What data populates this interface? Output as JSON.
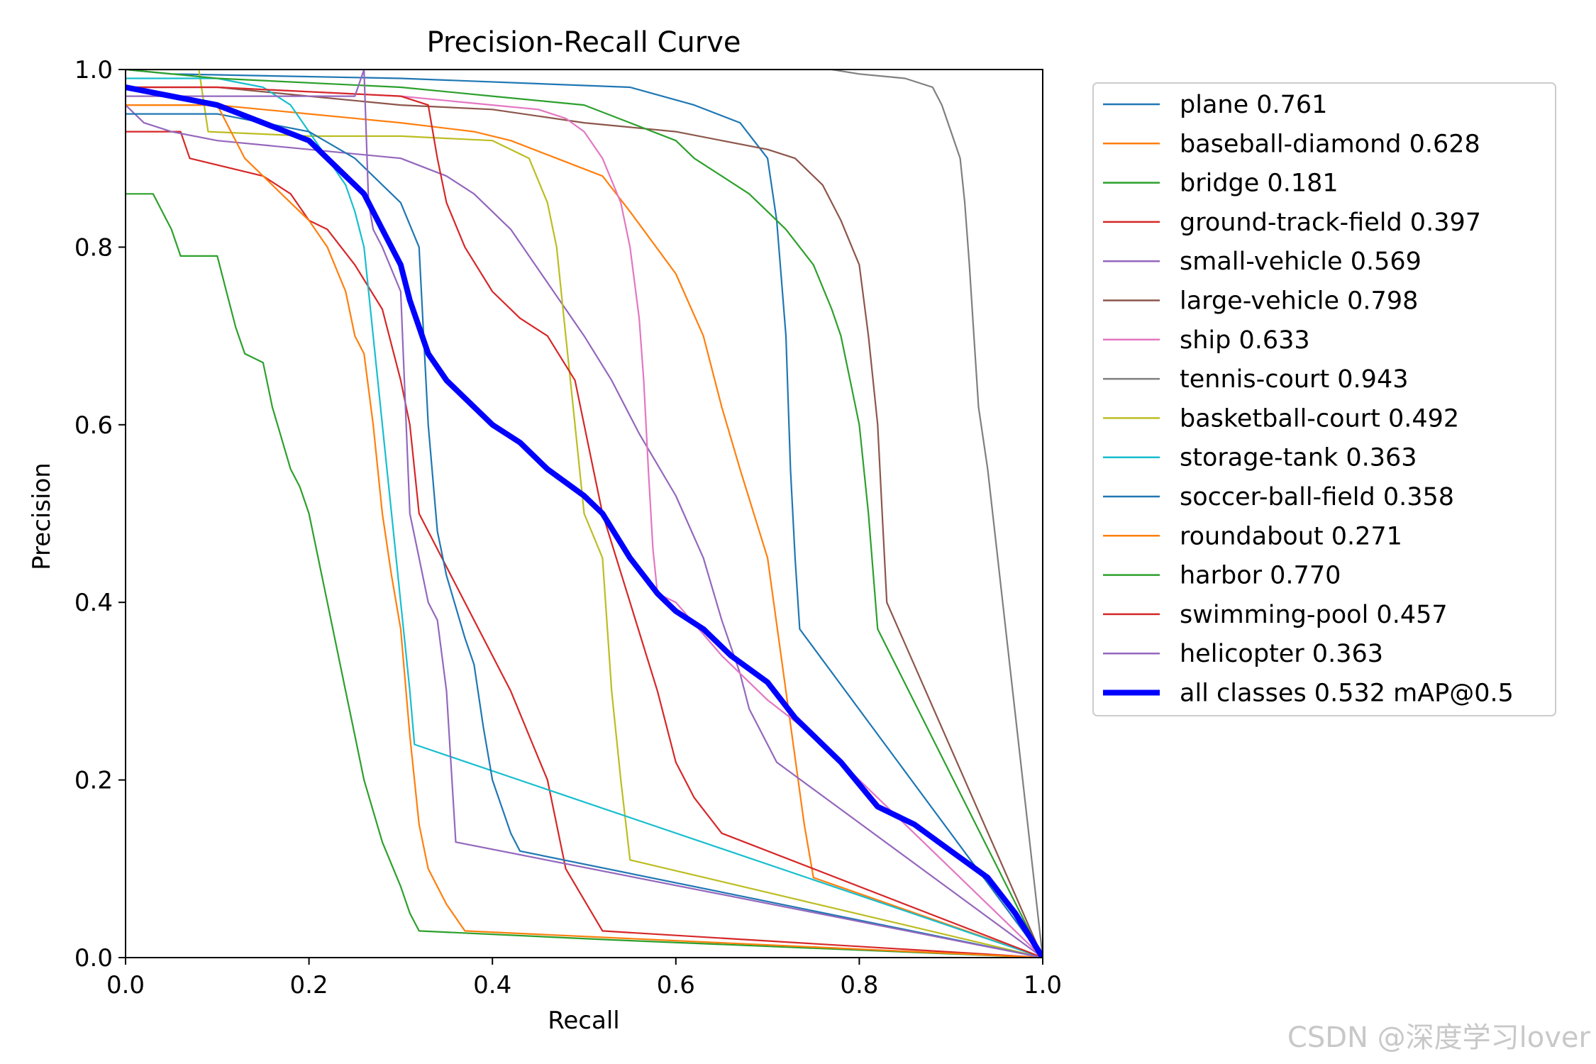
{
  "chart_data": {
    "type": "line",
    "title": "Precision-Recall Curve",
    "xlabel": "Recall",
    "ylabel": "Precision",
    "xlim": [
      0,
      1
    ],
    "ylim": [
      0,
      1
    ],
    "xticks": [
      "0.0",
      "0.2",
      "0.4",
      "0.6",
      "0.8",
      "1.0"
    ],
    "yticks": [
      "0.0",
      "0.2",
      "0.4",
      "0.6",
      "0.8",
      "1.0"
    ],
    "legend_position": "outside-right",
    "series": [
      {
        "name": "plane",
        "label": "plane 0.761",
        "color": "#1f77b4",
        "x": [
          0.0,
          0.05,
          0.3,
          0.55,
          0.62,
          0.67,
          0.7,
          0.71,
          0.72,
          0.725,
          0.73,
          0.735,
          1.0
        ],
        "y": [
          1.0,
          0.995,
          0.99,
          0.98,
          0.96,
          0.94,
          0.9,
          0.83,
          0.7,
          0.55,
          0.45,
          0.37,
          0.0
        ]
      },
      {
        "name": "baseball-diamond",
        "label": "baseball-diamond 0.628",
        "color": "#ff7f0e",
        "x": [
          0.0,
          0.05,
          0.1,
          0.2,
          0.3,
          0.38,
          0.42,
          0.47,
          0.52,
          0.55,
          0.6,
          0.63,
          0.65,
          0.67,
          0.7,
          0.72,
          0.74,
          0.75,
          1.0
        ],
        "y": [
          0.96,
          0.96,
          0.96,
          0.95,
          0.94,
          0.93,
          0.92,
          0.9,
          0.88,
          0.84,
          0.77,
          0.7,
          0.62,
          0.55,
          0.45,
          0.3,
          0.15,
          0.09,
          0.0
        ]
      },
      {
        "name": "bridge",
        "label": "bridge 0.181",
        "color": "#2ca02c",
        "x": [
          0.0,
          0.03,
          0.04,
          0.05,
          0.06,
          0.08,
          0.1,
          0.11,
          0.12,
          0.13,
          0.15,
          0.16,
          0.18,
          0.19,
          0.2,
          0.22,
          0.23,
          0.24,
          0.25,
          0.26,
          0.28,
          0.3,
          0.31,
          0.32,
          0.53,
          1.0
        ],
        "y": [
          0.86,
          0.86,
          0.84,
          0.82,
          0.79,
          0.79,
          0.79,
          0.75,
          0.71,
          0.68,
          0.67,
          0.62,
          0.55,
          0.53,
          0.5,
          0.4,
          0.35,
          0.3,
          0.25,
          0.2,
          0.13,
          0.08,
          0.05,
          0.03,
          0.02,
          0.0
        ]
      },
      {
        "name": "ground-track-field",
        "label": "ground-track-field 0.397",
        "color": "#d62728",
        "x": [
          0.0,
          0.06,
          0.07,
          0.15,
          0.18,
          0.2,
          0.22,
          0.25,
          0.28,
          0.3,
          0.31,
          0.32,
          0.35,
          0.38,
          0.42,
          0.44,
          0.46,
          0.48,
          0.52,
          1.0
        ],
        "y": [
          0.93,
          0.93,
          0.9,
          0.88,
          0.86,
          0.83,
          0.82,
          0.78,
          0.73,
          0.65,
          0.6,
          0.5,
          0.44,
          0.38,
          0.3,
          0.25,
          0.2,
          0.1,
          0.03,
          0.0
        ]
      },
      {
        "name": "small-vehicle",
        "label": "small-vehicle 0.569",
        "color": "#9467bd",
        "x": [
          0.0,
          0.02,
          0.05,
          0.1,
          0.2,
          0.3,
          0.35,
          0.38,
          0.42,
          0.46,
          0.5,
          0.53,
          0.56,
          0.6,
          0.63,
          0.65,
          0.67,
          0.68,
          0.7,
          0.71,
          1.0
        ],
        "y": [
          0.96,
          0.94,
          0.93,
          0.92,
          0.91,
          0.9,
          0.88,
          0.86,
          0.82,
          0.76,
          0.7,
          0.65,
          0.59,
          0.52,
          0.45,
          0.38,
          0.32,
          0.28,
          0.24,
          0.22,
          0.0
        ]
      },
      {
        "name": "large-vehicle",
        "label": "large-vehicle 0.798",
        "color": "#8c564b",
        "x": [
          0.0,
          0.1,
          0.2,
          0.3,
          0.4,
          0.5,
          0.6,
          0.7,
          0.73,
          0.76,
          0.78,
          0.8,
          0.81,
          0.82,
          0.825,
          0.83,
          1.0
        ],
        "y": [
          0.98,
          0.98,
          0.97,
          0.96,
          0.955,
          0.94,
          0.93,
          0.91,
          0.9,
          0.87,
          0.83,
          0.78,
          0.7,
          0.6,
          0.5,
          0.4,
          0.0
        ]
      },
      {
        "name": "ship",
        "label": "ship 0.633",
        "color": "#e377c2",
        "x": [
          0.0,
          0.1,
          0.2,
          0.3,
          0.35,
          0.4,
          0.45,
          0.48,
          0.5,
          0.52,
          0.54,
          0.55,
          0.56,
          0.565,
          0.57,
          0.575,
          0.58,
          0.6,
          0.65,
          0.7,
          0.75,
          0.8,
          0.85,
          0.9,
          1.0
        ],
        "y": [
          0.98,
          0.98,
          0.975,
          0.97,
          0.965,
          0.96,
          0.955,
          0.945,
          0.93,
          0.9,
          0.85,
          0.8,
          0.72,
          0.65,
          0.55,
          0.46,
          0.41,
          0.4,
          0.34,
          0.29,
          0.25,
          0.2,
          0.15,
          0.1,
          0.0
        ]
      },
      {
        "name": "tennis-court",
        "label": "tennis-court 0.943",
        "color": "#7f7f7f",
        "x": [
          0.0,
          0.3,
          0.6,
          0.77,
          0.8,
          0.85,
          0.88,
          0.89,
          0.9,
          0.91,
          0.915,
          0.92,
          0.925,
          0.93,
          0.94,
          1.0
        ],
        "y": [
          1.0,
          1.0,
          1.0,
          1.0,
          0.995,
          0.99,
          0.98,
          0.96,
          0.93,
          0.9,
          0.85,
          0.78,
          0.7,
          0.62,
          0.55,
          0.0
        ]
      },
      {
        "name": "basketball-court",
        "label": "basketball-court 0.492",
        "color": "#bcbd22",
        "x": [
          0.0,
          0.08,
          0.09,
          0.2,
          0.3,
          0.4,
          0.44,
          0.46,
          0.47,
          0.48,
          0.49,
          0.5,
          0.52,
          0.53,
          0.54,
          0.55,
          1.0
        ],
        "y": [
          1.0,
          1.0,
          0.93,
          0.925,
          0.925,
          0.92,
          0.9,
          0.85,
          0.8,
          0.7,
          0.6,
          0.5,
          0.45,
          0.3,
          0.2,
          0.11,
          0.0
        ]
      },
      {
        "name": "storage-tank",
        "label": "storage-tank 0.363",
        "color": "#17becf",
        "x": [
          0.0,
          0.1,
          0.15,
          0.18,
          0.2,
          0.22,
          0.24,
          0.25,
          0.26,
          0.27,
          0.28,
          0.29,
          0.3,
          0.305,
          0.31,
          0.315,
          1.0
        ],
        "y": [
          0.99,
          0.99,
          0.98,
          0.96,
          0.93,
          0.9,
          0.87,
          0.84,
          0.8,
          0.7,
          0.6,
          0.5,
          0.4,
          0.35,
          0.3,
          0.24,
          0.0
        ]
      },
      {
        "name": "soccer-ball-field",
        "label": "soccer-ball-field 0.358",
        "color": "#1f77b4",
        "x": [
          0.0,
          0.1,
          0.2,
          0.25,
          0.3,
          0.32,
          0.33,
          0.34,
          0.35,
          0.37,
          0.38,
          0.39,
          0.4,
          0.42,
          0.43,
          1.0
        ],
        "y": [
          0.95,
          0.95,
          0.93,
          0.9,
          0.85,
          0.8,
          0.6,
          0.48,
          0.43,
          0.36,
          0.33,
          0.26,
          0.2,
          0.14,
          0.12,
          0.0
        ]
      },
      {
        "name": "roundabout",
        "label": "roundabout 0.271",
        "color": "#ff7f0e",
        "x": [
          0.0,
          0.1,
          0.13,
          0.15,
          0.18,
          0.2,
          0.22,
          0.24,
          0.25,
          0.26,
          0.27,
          0.28,
          0.29,
          0.3,
          0.31,
          0.32,
          0.33,
          0.35,
          0.37,
          1.0
        ],
        "y": [
          0.96,
          0.96,
          0.9,
          0.88,
          0.85,
          0.83,
          0.8,
          0.75,
          0.7,
          0.68,
          0.6,
          0.5,
          0.43,
          0.37,
          0.25,
          0.15,
          0.1,
          0.06,
          0.03,
          0.0
        ]
      },
      {
        "name": "harbor",
        "label": "harbor 0.770",
        "color": "#2ca02c",
        "x": [
          0.0,
          0.1,
          0.3,
          0.4,
          0.5,
          0.55,
          0.6,
          0.62,
          0.65,
          0.68,
          0.7,
          0.72,
          0.75,
          0.77,
          0.78,
          0.79,
          0.8,
          0.81,
          0.82,
          1.0
        ],
        "y": [
          1.0,
          0.99,
          0.98,
          0.97,
          0.96,
          0.94,
          0.92,
          0.9,
          0.88,
          0.86,
          0.84,
          0.82,
          0.78,
          0.73,
          0.7,
          0.65,
          0.6,
          0.5,
          0.37,
          0.0
        ]
      },
      {
        "name": "swimming-pool",
        "label": "swimming-pool 0.457",
        "color": "#d62728",
        "x": [
          0.0,
          0.1,
          0.2,
          0.3,
          0.33,
          0.34,
          0.35,
          0.37,
          0.4,
          0.43,
          0.46,
          0.49,
          0.51,
          0.52,
          0.55,
          0.58,
          0.6,
          0.62,
          0.65,
          1.0
        ],
        "y": [
          0.98,
          0.98,
          0.975,
          0.97,
          0.96,
          0.9,
          0.85,
          0.8,
          0.75,
          0.72,
          0.7,
          0.65,
          0.55,
          0.5,
          0.4,
          0.3,
          0.22,
          0.18,
          0.14,
          0.0
        ]
      },
      {
        "name": "helicopter",
        "label": "helicopter 0.363",
        "color": "#9467bd",
        "x": [
          0.0,
          0.25,
          0.26,
          0.265,
          0.27,
          0.28,
          0.3,
          0.31,
          0.32,
          0.33,
          0.34,
          0.35,
          0.36,
          1.0
        ],
        "y": [
          0.97,
          0.97,
          1.0,
          0.85,
          0.82,
          0.8,
          0.75,
          0.5,
          0.45,
          0.4,
          0.38,
          0.3,
          0.13,
          0.0
        ]
      },
      {
        "name": "all classes",
        "label": "all classes 0.532 mAP@0.5",
        "color": "#0000ff",
        "width": 8,
        "x": [
          0.0,
          0.05,
          0.1,
          0.15,
          0.2,
          0.23,
          0.26,
          0.28,
          0.3,
          0.31,
          0.32,
          0.33,
          0.35,
          0.38,
          0.4,
          0.43,
          0.46,
          0.5,
          0.52,
          0.55,
          0.58,
          0.6,
          0.63,
          0.66,
          0.7,
          0.73,
          0.75,
          0.78,
          0.82,
          0.86,
          0.9,
          0.94,
          0.97,
          1.0
        ],
        "y": [
          0.98,
          0.97,
          0.96,
          0.94,
          0.92,
          0.89,
          0.86,
          0.82,
          0.78,
          0.74,
          0.71,
          0.68,
          0.65,
          0.62,
          0.6,
          0.58,
          0.55,
          0.52,
          0.5,
          0.45,
          0.41,
          0.39,
          0.37,
          0.34,
          0.31,
          0.27,
          0.25,
          0.22,
          0.17,
          0.15,
          0.12,
          0.09,
          0.05,
          0.0
        ]
      }
    ]
  },
  "watermark": "CSDN @深度学习lover"
}
